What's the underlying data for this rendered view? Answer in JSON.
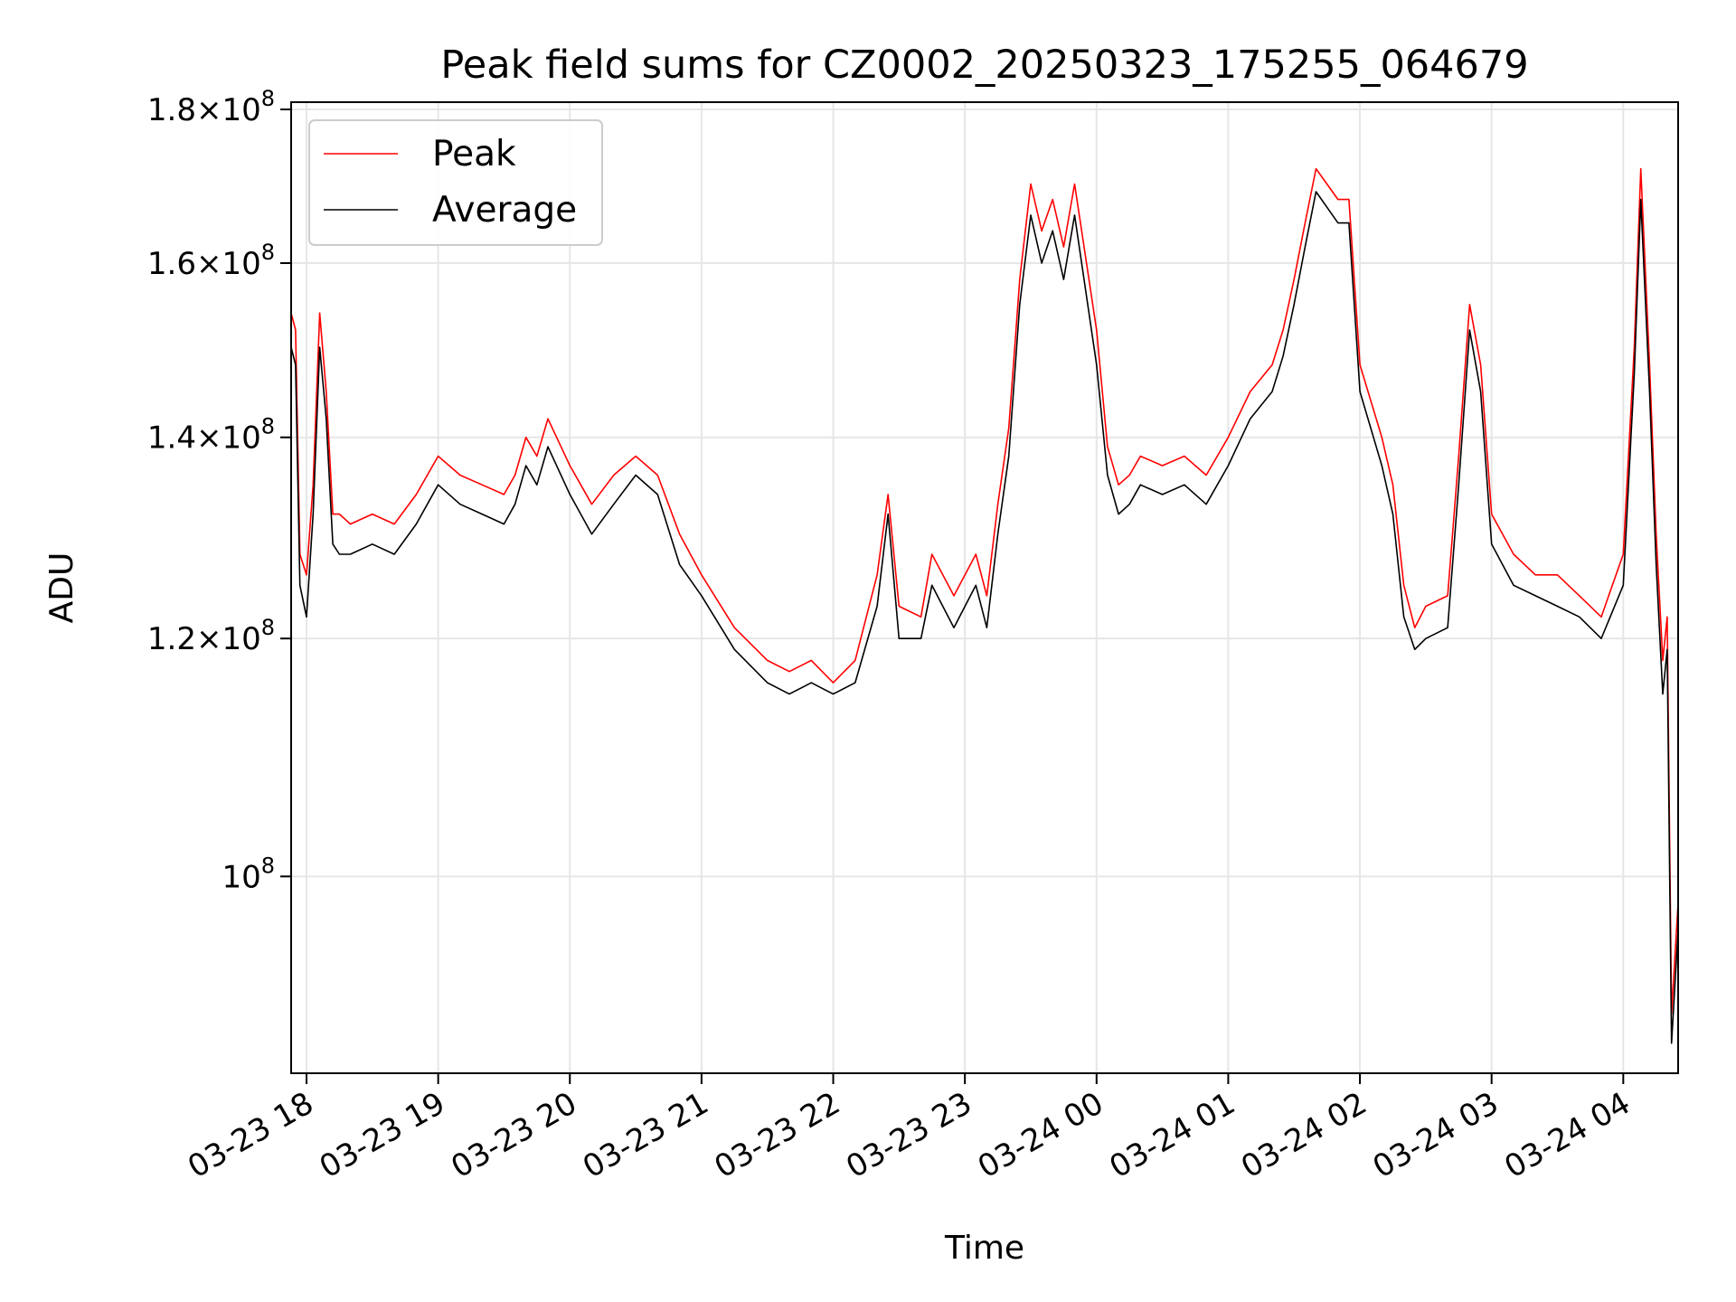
{
  "chart_data": {
    "type": "line",
    "title": "Peak field sums for CZ0002_20250323_175255_064679",
    "xlabel": "Time",
    "ylabel": "ADU",
    "yscale": "log",
    "grid": true,
    "legend_placement": "upper-left",
    "xlim": [
      "2025-03-23T17:53",
      "2025-03-24T04:25"
    ],
    "ylim": [
      86000000,
      181000000
    ],
    "x_ticks": [
      {
        "value": "2025-03-23T18:00",
        "label": "03-23 18"
      },
      {
        "value": "2025-03-23T19:00",
        "label": "03-23 19"
      },
      {
        "value": "2025-03-23T20:00",
        "label": "03-23 20"
      },
      {
        "value": "2025-03-23T21:00",
        "label": "03-23 21"
      },
      {
        "value": "2025-03-23T22:00",
        "label": "03-23 22"
      },
      {
        "value": "2025-03-23T23:00",
        "label": "03-23 23"
      },
      {
        "value": "2025-03-24T00:00",
        "label": "03-24 00"
      },
      {
        "value": "2025-03-24T01:00",
        "label": "03-24 01"
      },
      {
        "value": "2025-03-24T02:00",
        "label": "03-24 02"
      },
      {
        "value": "2025-03-24T03:00",
        "label": "03-24 03"
      },
      {
        "value": "2025-03-24T04:00",
        "label": "03-24 04"
      }
    ],
    "y_ticks": [
      {
        "value": 100000000,
        "mantissa": "",
        "exp": "8"
      },
      {
        "value": 120000000,
        "mantissa": "1.2×",
        "exp": "8"
      },
      {
        "value": 140000000,
        "mantissa": "1.4×",
        "exp": "8"
      },
      {
        "value": 160000000,
        "mantissa": "1.6×",
        "exp": "8"
      },
      {
        "value": 180000000,
        "mantissa": "1.8×",
        "exp": "8"
      }
    ],
    "series": [
      {
        "name": "Peak",
        "color": "#ff0000",
        "x": [
          "2025-03-23T17:53",
          "2025-03-23T17:55",
          "2025-03-23T17:57",
          "2025-03-23T18:00",
          "2025-03-23T18:03",
          "2025-03-23T18:06",
          "2025-03-23T18:09",
          "2025-03-23T18:12",
          "2025-03-23T18:15",
          "2025-03-23T18:20",
          "2025-03-23T18:30",
          "2025-03-23T18:40",
          "2025-03-23T18:50",
          "2025-03-23T19:00",
          "2025-03-23T19:10",
          "2025-03-23T19:20",
          "2025-03-23T19:30",
          "2025-03-23T19:35",
          "2025-03-23T19:40",
          "2025-03-23T19:45",
          "2025-03-23T19:50",
          "2025-03-23T20:00",
          "2025-03-23T20:10",
          "2025-03-23T20:20",
          "2025-03-23T20:30",
          "2025-03-23T20:40",
          "2025-03-23T20:50",
          "2025-03-23T21:00",
          "2025-03-23T21:15",
          "2025-03-23T21:30",
          "2025-03-23T21:40",
          "2025-03-23T21:50",
          "2025-03-23T22:00",
          "2025-03-23T22:10",
          "2025-03-23T22:20",
          "2025-03-23T22:25",
          "2025-03-23T22:30",
          "2025-03-23T22:40",
          "2025-03-23T22:45",
          "2025-03-23T22:55",
          "2025-03-23T23:05",
          "2025-03-23T23:10",
          "2025-03-23T23:15",
          "2025-03-23T23:20",
          "2025-03-23T23:25",
          "2025-03-23T23:30",
          "2025-03-23T23:35",
          "2025-03-23T23:40",
          "2025-03-23T23:45",
          "2025-03-23T23:50",
          "2025-03-24T00:00",
          "2025-03-24T00:05",
          "2025-03-24T00:10",
          "2025-03-24T00:15",
          "2025-03-24T00:20",
          "2025-03-24T00:30",
          "2025-03-24T00:40",
          "2025-03-24T00:50",
          "2025-03-24T01:00",
          "2025-03-24T01:10",
          "2025-03-24T01:20",
          "2025-03-24T01:25",
          "2025-03-24T01:30",
          "2025-03-24T01:35",
          "2025-03-24T01:40",
          "2025-03-24T01:45",
          "2025-03-24T01:50",
          "2025-03-24T01:55",
          "2025-03-24T02:00",
          "2025-03-24T02:10",
          "2025-03-24T02:15",
          "2025-03-24T02:20",
          "2025-03-24T02:25",
          "2025-03-24T02:30",
          "2025-03-24T02:40",
          "2025-03-24T02:45",
          "2025-03-24T02:50",
          "2025-03-24T02:55",
          "2025-03-24T03:00",
          "2025-03-24T03:10",
          "2025-03-24T03:20",
          "2025-03-24T03:30",
          "2025-03-24T03:40",
          "2025-03-24T03:50",
          "2025-03-24T04:00",
          "2025-03-24T04:05",
          "2025-03-24T04:08",
          "2025-03-24T04:12",
          "2025-03-24T04:15",
          "2025-03-24T04:18",
          "2025-03-24T04:20",
          "2025-03-24T04:22",
          "2025-03-24T04:25"
        ],
        "y": [
          154000000,
          152000000,
          128000000,
          126000000,
          135000000,
          154000000,
          145000000,
          132000000,
          132000000,
          131000000,
          132000000,
          131000000,
          134000000,
          138000000,
          136000000,
          135000000,
          134000000,
          136000000,
          140000000,
          138000000,
          142000000,
          137000000,
          133000000,
          136000000,
          138000000,
          136000000,
          130000000,
          126000000,
          121000000,
          118000000,
          117000000,
          118000000,
          116000000,
          118000000,
          126000000,
          134000000,
          123000000,
          122000000,
          128000000,
          124000000,
          128000000,
          124000000,
          133000000,
          141000000,
          158000000,
          170000000,
          164000000,
          168000000,
          162000000,
          170000000,
          152000000,
          139000000,
          135000000,
          136000000,
          138000000,
          137000000,
          138000000,
          136000000,
          140000000,
          145000000,
          148000000,
          152000000,
          158000000,
          165000000,
          172000000,
          170000000,
          168000000,
          168000000,
          148000000,
          140000000,
          135000000,
          125000000,
          121000000,
          123000000,
          124000000,
          138000000,
          155000000,
          148000000,
          132000000,
          128000000,
          126000000,
          126000000,
          124000000,
          122000000,
          128000000,
          150000000,
          172000000,
          148000000,
          130000000,
          118000000,
          122000000,
          90000000,
          98000000
        ]
      },
      {
        "name": "Average",
        "color": "#000000",
        "x": [
          "2025-03-23T17:53",
          "2025-03-23T17:55",
          "2025-03-23T17:57",
          "2025-03-23T18:00",
          "2025-03-23T18:03",
          "2025-03-23T18:06",
          "2025-03-23T18:09",
          "2025-03-23T18:12",
          "2025-03-23T18:15",
          "2025-03-23T18:20",
          "2025-03-23T18:30",
          "2025-03-23T18:40",
          "2025-03-23T18:50",
          "2025-03-23T19:00",
          "2025-03-23T19:10",
          "2025-03-23T19:20",
          "2025-03-23T19:30",
          "2025-03-23T19:35",
          "2025-03-23T19:40",
          "2025-03-23T19:45",
          "2025-03-23T19:50",
          "2025-03-23T20:00",
          "2025-03-23T20:10",
          "2025-03-23T20:20",
          "2025-03-23T20:30",
          "2025-03-23T20:40",
          "2025-03-23T20:50",
          "2025-03-23T21:00",
          "2025-03-23T21:15",
          "2025-03-23T21:30",
          "2025-03-23T21:40",
          "2025-03-23T21:50",
          "2025-03-23T22:00",
          "2025-03-23T22:10",
          "2025-03-23T22:20",
          "2025-03-23T22:25",
          "2025-03-23T22:30",
          "2025-03-23T22:40",
          "2025-03-23T22:45",
          "2025-03-23T22:55",
          "2025-03-23T23:05",
          "2025-03-23T23:10",
          "2025-03-23T23:15",
          "2025-03-23T23:20",
          "2025-03-23T23:25",
          "2025-03-23T23:30",
          "2025-03-23T23:35",
          "2025-03-23T23:40",
          "2025-03-23T23:45",
          "2025-03-23T23:50",
          "2025-03-24T00:00",
          "2025-03-24T00:05",
          "2025-03-24T00:10",
          "2025-03-24T00:15",
          "2025-03-24T00:20",
          "2025-03-24T00:30",
          "2025-03-24T00:40",
          "2025-03-24T00:50",
          "2025-03-24T01:00",
          "2025-03-24T01:10",
          "2025-03-24T01:20",
          "2025-03-24T01:25",
          "2025-03-24T01:30",
          "2025-03-24T01:35",
          "2025-03-24T01:40",
          "2025-03-24T01:45",
          "2025-03-24T01:50",
          "2025-03-24T01:55",
          "2025-03-24T02:00",
          "2025-03-24T02:10",
          "2025-03-24T02:15",
          "2025-03-24T02:20",
          "2025-03-24T02:25",
          "2025-03-24T02:30",
          "2025-03-24T02:40",
          "2025-03-24T02:45",
          "2025-03-24T02:50",
          "2025-03-24T02:55",
          "2025-03-24T03:00",
          "2025-03-24T03:10",
          "2025-03-24T03:20",
          "2025-03-24T03:30",
          "2025-03-24T03:40",
          "2025-03-24T03:50",
          "2025-03-24T04:00",
          "2025-03-24T04:05",
          "2025-03-24T04:08",
          "2025-03-24T04:12",
          "2025-03-24T04:15",
          "2025-03-24T04:18",
          "2025-03-24T04:20",
          "2025-03-24T04:22",
          "2025-03-24T04:25"
        ],
        "y": [
          150000000,
          148000000,
          125000000,
          122000000,
          132000000,
          150000000,
          142000000,
          129000000,
          128000000,
          128000000,
          129000000,
          128000000,
          131000000,
          135000000,
          133000000,
          132000000,
          131000000,
          133000000,
          137000000,
          135000000,
          139000000,
          134000000,
          130000000,
          133000000,
          136000000,
          134000000,
          127000000,
          124000000,
          119000000,
          116000000,
          115000000,
          116000000,
          115000000,
          116000000,
          123000000,
          132000000,
          120000000,
          120000000,
          125000000,
          121000000,
          125000000,
          121000000,
          130000000,
          138000000,
          155000000,
          166000000,
          160000000,
          164000000,
          158000000,
          166000000,
          148000000,
          136000000,
          132000000,
          133000000,
          135000000,
          134000000,
          135000000,
          133000000,
          137000000,
          142000000,
          145000000,
          149000000,
          155000000,
          162000000,
          169000000,
          167000000,
          165000000,
          165000000,
          145000000,
          137000000,
          132000000,
          122000000,
          119000000,
          120000000,
          121000000,
          135000000,
          152000000,
          145000000,
          129000000,
          125000000,
          124000000,
          123000000,
          122000000,
          120000000,
          125000000,
          147000000,
          168000000,
          145000000,
          127000000,
          115000000,
          119000000,
          88000000,
          96000000
        ]
      }
    ]
  }
}
